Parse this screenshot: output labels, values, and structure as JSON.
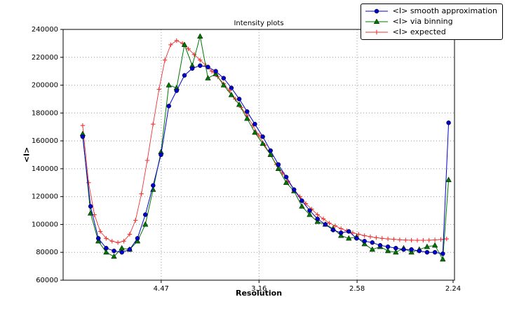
{
  "chart_data": {
    "type": "line",
    "title": "Intensity plots",
    "xlabel": "Resolution",
    "ylabel": "<I>",
    "xlim": [
      0,
      0.2
    ],
    "ylim": [
      60000,
      240000
    ],
    "grid": true,
    "legend_position": "upper right",
    "y_ticks": [
      60000,
      80000,
      100000,
      120000,
      140000,
      160000,
      180000,
      200000,
      220000,
      240000
    ],
    "x_ticks": [
      {
        "pos": 0.0501,
        "label": "4.47"
      },
      {
        "pos": 0.1001,
        "label": "3.16"
      },
      {
        "pos": 0.1502,
        "label": "2.58"
      },
      {
        "pos": 0.1993,
        "label": "2.24"
      }
    ],
    "series": [
      {
        "id": "expected",
        "name": "<I> expected",
        "color": "#ee3333",
        "marker": "plus",
        "line_width": 0.9,
        "x": [
          0.01,
          0.013,
          0.016,
          0.019,
          0.022,
          0.025,
          0.028,
          0.031,
          0.034,
          0.037,
          0.04,
          0.043,
          0.046,
          0.049,
          0.052,
          0.055,
          0.058,
          0.061,
          0.064,
          0.067,
          0.07,
          0.073,
          0.076,
          0.079,
          0.082,
          0.085,
          0.088,
          0.091,
          0.094,
          0.097,
          0.1,
          0.103,
          0.106,
          0.109,
          0.112,
          0.115,
          0.118,
          0.121,
          0.124,
          0.127,
          0.13,
          0.133,
          0.136,
          0.139,
          0.142,
          0.145,
          0.148,
          0.151,
          0.154,
          0.157,
          0.16,
          0.163,
          0.166,
          0.169,
          0.172,
          0.175,
          0.178,
          0.181,
          0.184,
          0.187,
          0.19,
          0.193,
          0.196
        ],
        "y": [
          171000,
          130000,
          107000,
          95000,
          90000,
          88000,
          87000,
          88000,
          93000,
          103000,
          122000,
          146000,
          172000,
          197000,
          218000,
          229000,
          232000,
          230000,
          226000,
          222000,
          218000,
          214000,
          210000,
          206000,
          201000,
          196000,
          190000,
          184000,
          178000,
          171000,
          164000,
          157000,
          150000,
          143000,
          137000,
          131000,
          125000,
          120000,
          115000,
          111000,
          107000,
          104000,
          101000,
          99000,
          97000,
          95500,
          94000,
          93000,
          92000,
          91200,
          90500,
          90000,
          89600,
          89300,
          89000,
          88800,
          88700,
          88600,
          88600,
          88700,
          88900,
          89200,
          89600
        ]
      },
      {
        "id": "binning",
        "name": "<I> via binning",
        "color": "#007700",
        "marker": "triangle",
        "line_width": 1,
        "x": [
          0.01,
          0.014,
          0.018,
          0.022,
          0.026,
          0.03,
          0.034,
          0.038,
          0.042,
          0.046,
          0.05,
          0.054,
          0.058,
          0.062,
          0.066,
          0.07,
          0.074,
          0.078,
          0.082,
          0.086,
          0.09,
          0.094,
          0.098,
          0.102,
          0.106,
          0.11,
          0.114,
          0.118,
          0.122,
          0.126,
          0.13,
          0.134,
          0.138,
          0.142,
          0.146,
          0.15,
          0.154,
          0.158,
          0.162,
          0.166,
          0.17,
          0.174,
          0.178,
          0.182,
          0.186,
          0.19,
          0.194,
          0.197
        ],
        "y": [
          165000,
          108000,
          88000,
          80000,
          77000,
          83000,
          82000,
          88000,
          100000,
          125000,
          152000,
          200000,
          198000,
          229000,
          214000,
          235000,
          205000,
          208000,
          200000,
          193000,
          186000,
          176000,
          166000,
          158000,
          150000,
          140000,
          130000,
          124000,
          113000,
          107000,
          102000,
          100000,
          97000,
          92000,
          90000,
          91000,
          86000,
          82000,
          84000,
          81000,
          80000,
          83000,
          80000,
          82000,
          84000,
          85000,
          75000,
          132000
        ]
      },
      {
        "id": "smooth",
        "name": "<I> smooth approximation",
        "color": "#0000cc",
        "marker": "circle",
        "line_width": 1,
        "x": [
          0.01,
          0.014,
          0.018,
          0.022,
          0.026,
          0.03,
          0.034,
          0.038,
          0.042,
          0.046,
          0.05,
          0.054,
          0.058,
          0.062,
          0.066,
          0.07,
          0.074,
          0.078,
          0.082,
          0.086,
          0.09,
          0.094,
          0.098,
          0.102,
          0.106,
          0.11,
          0.114,
          0.118,
          0.122,
          0.126,
          0.13,
          0.134,
          0.138,
          0.142,
          0.146,
          0.15,
          0.154,
          0.158,
          0.162,
          0.166,
          0.17,
          0.174,
          0.178,
          0.182,
          0.186,
          0.19,
          0.194,
          0.197
        ],
        "y": [
          163000,
          113000,
          90000,
          83000,
          81000,
          80000,
          82000,
          90000,
          107000,
          128000,
          150000,
          185000,
          196000,
          207000,
          212000,
          214000,
          213000,
          210000,
          205000,
          198000,
          190000,
          181000,
          172000,
          163000,
          153000,
          143000,
          134000,
          125000,
          117000,
          110000,
          104000,
          100000,
          96000,
          94000,
          95000,
          90000,
          88000,
          87000,
          85000,
          84000,
          83000,
          82000,
          82000,
          81000,
          80000,
          80000,
          79000,
          173000
        ]
      }
    ],
    "legend_order": [
      "smooth",
      "binning",
      "expected"
    ]
  }
}
